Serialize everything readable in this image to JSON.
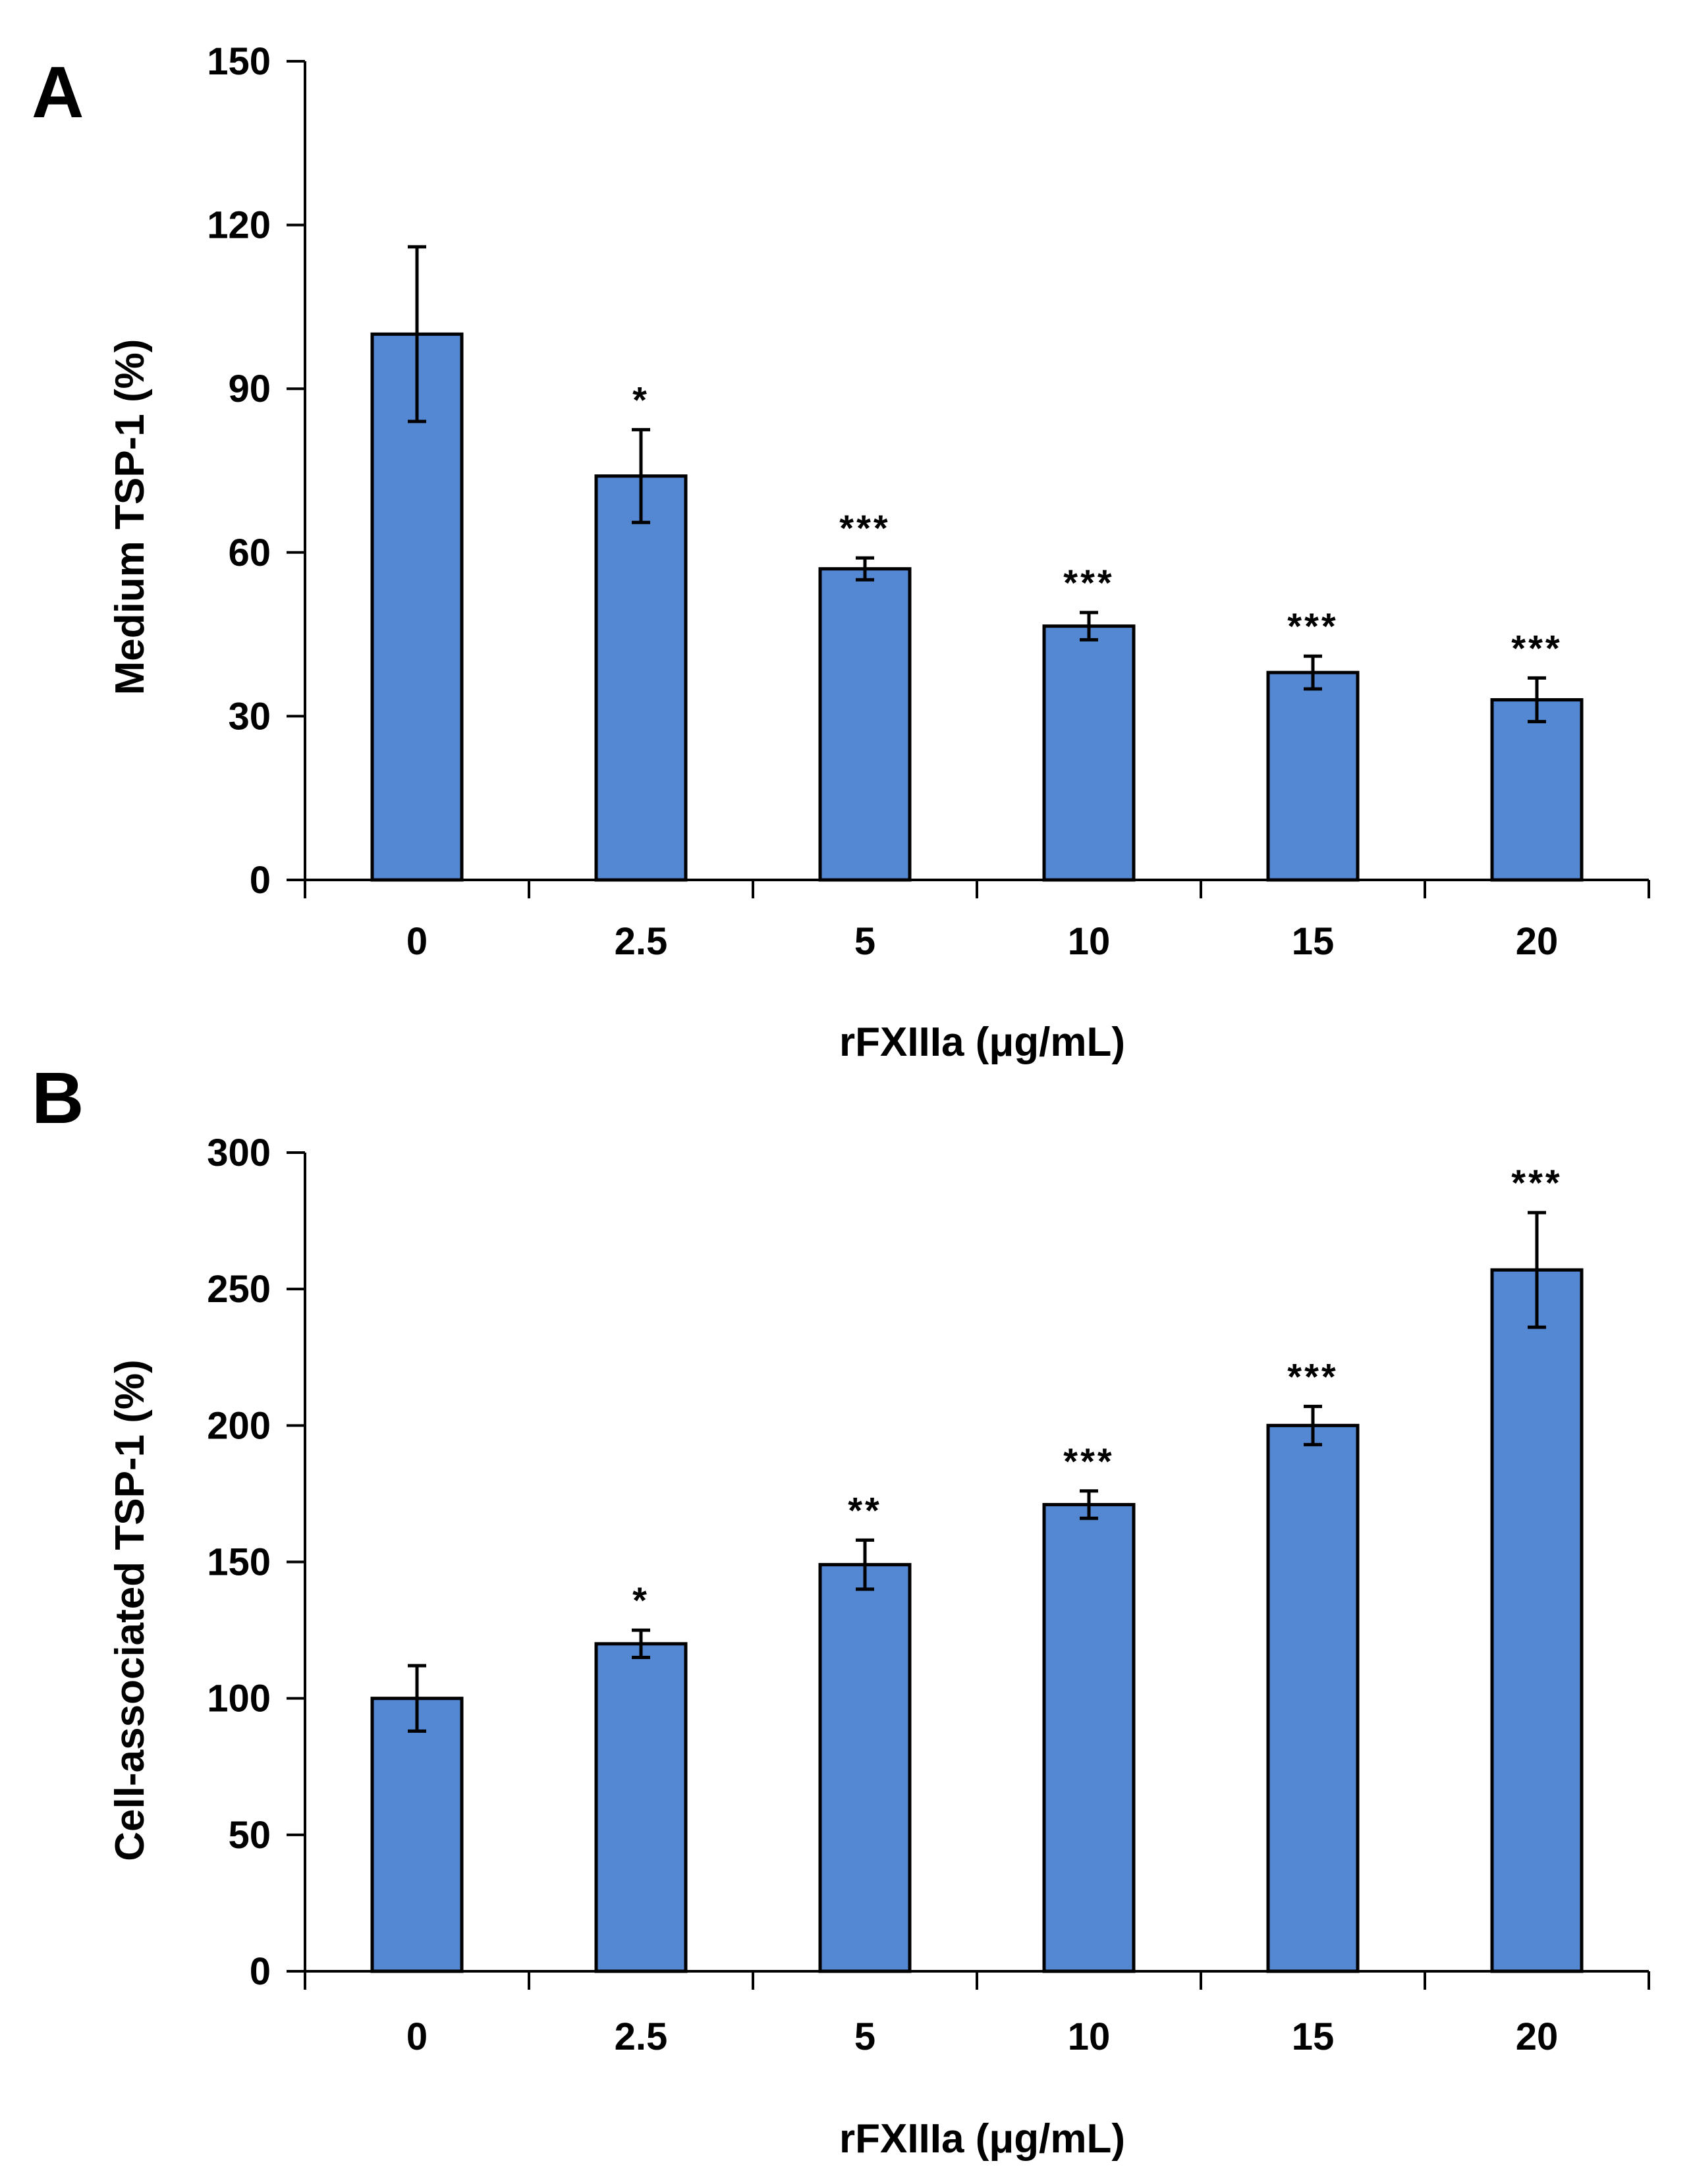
{
  "chart_data": [
    {
      "panel": "A",
      "type": "bar",
      "categories": [
        "0",
        "2.5",
        "5",
        "10",
        "15",
        "20"
      ],
      "values": [
        100,
        74,
        57,
        46.5,
        38,
        33
      ],
      "errors": [
        16,
        8.5,
        2,
        2.5,
        3,
        4
      ],
      "significance": [
        "",
        "*",
        "***",
        "***",
        "***",
        "***"
      ],
      "xlabel": "rFXIIIa (μg/mL)",
      "ylabel": "Medium TSP-1 (%)",
      "ylim": [
        0,
        150
      ],
      "yticks": [
        0,
        30,
        60,
        90,
        120,
        150
      ],
      "bar_color": "#5588d3",
      "grid": false
    },
    {
      "panel": "B",
      "type": "bar",
      "categories": [
        "0",
        "2.5",
        "5",
        "10",
        "15",
        "20"
      ],
      "values": [
        100,
        120,
        149,
        171,
        200,
        257
      ],
      "errors": [
        12,
        5,
        9,
        5,
        7,
        21
      ],
      "significance": [
        "",
        "*",
        "**",
        "***",
        "***",
        "***"
      ],
      "xlabel": "rFXIIIa (μg/mL)",
      "ylabel": "Cell-associated TSP-1 (%)",
      "ylim": [
        0,
        300
      ],
      "yticks": [
        0,
        50,
        100,
        150,
        200,
        250,
        300
      ],
      "bar_color": "#5588d3",
      "grid": false
    }
  ]
}
